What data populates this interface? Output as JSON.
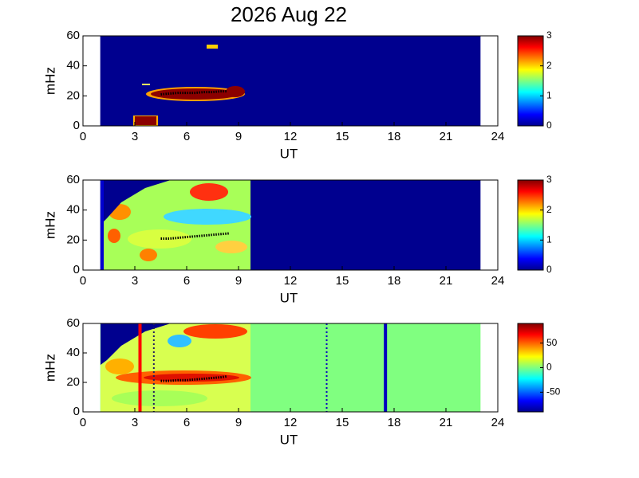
{
  "chart_data": [
    {
      "type": "heatmap",
      "title": "2026 Aug 22",
      "xlabel": "UT",
      "ylabel": "mHz",
      "xlim": [
        0,
        24
      ],
      "xticks": [
        0,
        3,
        6,
        9,
        12,
        15,
        18,
        21,
        24
      ],
      "ylim": [
        0,
        60
      ],
      "yticks": [
        0,
        20,
        40,
        60
      ],
      "background": "#00008f",
      "extent": [
        1,
        23
      ],
      "clim": [
        0,
        3
      ],
      "cticks": [
        0,
        1,
        2,
        3
      ],
      "x": [
        4.5,
        5,
        5.5,
        6,
        6.5,
        7,
        7.5,
        8,
        8.3
      ],
      "values": [
        21,
        21.5,
        22,
        22,
        22,
        22.5,
        22.5,
        23,
        23
      ]
    },
    {
      "type": "heatmap",
      "xlabel": "UT",
      "ylabel": "mHz",
      "xlim": [
        0,
        24
      ],
      "xticks": [
        0,
        3,
        6,
        9,
        12,
        15,
        18,
        21,
        24
      ],
      "ylim": [
        0,
        60
      ],
      "yticks": [
        0,
        20,
        40,
        60
      ],
      "background": "#00008f",
      "extent": [
        1,
        23
      ],
      "clim": [
        0,
        3
      ],
      "cticks": [
        0,
        1,
        2,
        3
      ],
      "x": [
        4.5,
        5,
        5.5,
        6,
        6.5,
        7,
        7.5,
        8,
        8.5
      ],
      "values": [
        21,
        21,
        21.5,
        22,
        22.5,
        23,
        23.5,
        24,
        24.5
      ]
    },
    {
      "type": "heatmap",
      "xlabel": "UT",
      "ylabel": "mHz",
      "xlim": [
        0,
        24
      ],
      "xticks": [
        0,
        3,
        6,
        9,
        12,
        15,
        18,
        21,
        24
      ],
      "ylim": [
        0,
        60
      ],
      "yticks": [
        0,
        20,
        40,
        60
      ],
      "background": "#80ff80",
      "extent": [
        1,
        23
      ],
      "clim": [
        -90,
        90
      ],
      "cticks": [
        -50,
        0,
        50
      ],
      "x": [
        4.5,
        5,
        5.5,
        6,
        6.5,
        7,
        7.5,
        8,
        8.3
      ],
      "values": [
        21,
        21,
        21.5,
        21.5,
        22,
        22.5,
        23,
        23.5,
        24
      ],
      "markers": [
        {
          "x": 3.3,
          "color": "#ff0000",
          "dashed": false
        },
        {
          "x": 4.1,
          "color": "#202060",
          "dashed": true
        },
        {
          "x": 14.1,
          "color": "#0000c0",
          "dashed": true
        },
        {
          "x": 17.5,
          "color": "#0000c0",
          "dashed": false
        }
      ]
    }
  ]
}
